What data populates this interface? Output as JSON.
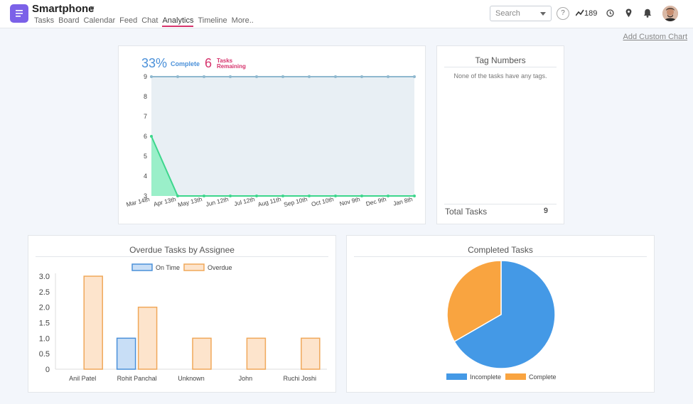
{
  "header": {
    "project_name": "Smartphone",
    "nav": [
      "Tasks",
      "Board",
      "Calendar",
      "Feed",
      "Chat",
      "Analytics",
      "Timeline",
      "More.."
    ],
    "active_tab": "Analytics",
    "search_placeholder": "Search",
    "help_label": "?",
    "activity_count": "189"
  },
  "add_custom_chart": "Add Custom Chart",
  "burndown": {
    "complete_pct": "33%",
    "complete_label": "Complete",
    "remaining_count": "6",
    "remaining_label_1": "Tasks",
    "remaining_label_2": "Remaining"
  },
  "tags": {
    "title": "Tag Numbers",
    "empty_text": "None of the tasks have any tags.",
    "total_label": "Total Tasks",
    "total_value": "9"
  },
  "overdue": {
    "title": "Overdue Tasks by Assignee"
  },
  "completed": {
    "title": "Completed Tasks"
  },
  "colors": {
    "accent": "#7b61e8",
    "total_line": "#8fb8cf",
    "remaining_line": "#3dd68c",
    "on_time": "#4a90d9",
    "overdue": "#f0a85a",
    "incomplete": "#4499e6",
    "complete": "#f9a440"
  },
  "chart_data": [
    {
      "type": "line",
      "x": [
        "Mar 14th",
        "Apr 13th",
        "May 13th",
        "Jun 12th",
        "Jul 12th",
        "Aug 11th",
        "Sep 10th",
        "Oct 10th",
        "Nov 9th",
        "Dec 9th",
        "Jan 8th"
      ],
      "series": [
        {
          "values": [
            9,
            9,
            9,
            9,
            9,
            9,
            9,
            9,
            9,
            9,
            9
          ]
        },
        {
          "values": [
            6,
            3,
            3,
            3,
            3,
            3,
            3,
            3,
            3,
            3,
            3
          ]
        }
      ],
      "yticks": [
        3,
        4,
        5,
        6,
        7,
        8,
        9
      ],
      "ylim": [
        3,
        9
      ],
      "grid": false
    },
    {
      "type": "bar",
      "categories": [
        "Anil Patel",
        "Rohit Panchal",
        "Unknown",
        "John",
        "Ruchi Joshi"
      ],
      "series": [
        {
          "name": "On Time",
          "values": [
            0,
            1,
            0,
            0,
            0
          ]
        },
        {
          "name": "Overdue",
          "values": [
            3,
            2,
            1,
            1,
            1
          ]
        }
      ],
      "yticks": [
        "0",
        "0.5",
        "1.0",
        "1.5",
        "2.0",
        "2.5",
        "3.0"
      ],
      "ylim": [
        0,
        3
      ],
      "legend": "top"
    },
    {
      "type": "pie",
      "labels": [
        "Incomplete",
        "Complete"
      ],
      "values": [
        6,
        3
      ],
      "legend": "bottom"
    }
  ]
}
